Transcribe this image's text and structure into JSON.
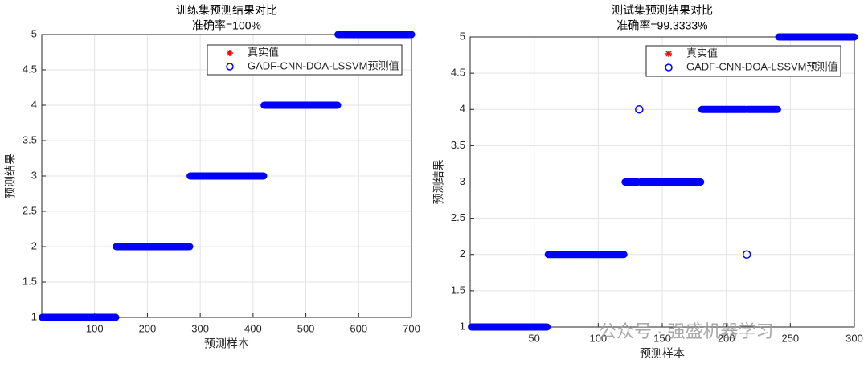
{
  "chart_data": [
    {
      "type": "scatter",
      "title": "训练集预测结果对比",
      "subtitle": "准确率=100%",
      "xlabel": "预测样本",
      "ylabel": "预测结果",
      "xlim": [
        0,
        700
      ],
      "xticks": [
        100,
        200,
        300,
        400,
        500,
        600,
        700
      ],
      "ylim": [
        1,
        5
      ],
      "yticks": [
        1,
        1.5,
        2,
        2.5,
        3,
        3.5,
        4,
        4.5,
        5
      ],
      "grid": true,
      "legend": "upper right",
      "series": [
        {
          "name": "真实值",
          "color": "#ff0000",
          "marker": "*",
          "runs": [
            {
              "x": [
                1,
                140
              ],
              "y": 1
            },
            {
              "x": [
                141,
                280
              ],
              "y": 2
            },
            {
              "x": [
                281,
                420
              ],
              "y": 3
            },
            {
              "x": [
                421,
                560
              ],
              "y": 4
            },
            {
              "x": [
                561,
                700
              ],
              "y": 5
            }
          ]
        },
        {
          "name": "GADF-CNN-DOA-LSSVM预测值",
          "color": "#0000ff",
          "marker": "o",
          "runs": [
            {
              "x": [
                1,
                140
              ],
              "y": 1
            },
            {
              "x": [
                141,
                280
              ],
              "y": 2
            },
            {
              "x": [
                281,
                420
              ],
              "y": 3
            },
            {
              "x": [
                421,
                560
              ],
              "y": 4
            },
            {
              "x": [
                561,
                700
              ],
              "y": 5
            }
          ]
        }
      ]
    },
    {
      "type": "scatter",
      "title": "测试集预测结果对比",
      "subtitle": "准确率=99.3333%",
      "xlabel": "预测样本",
      "ylabel": "预测结果",
      "xlim": [
        0,
        300
      ],
      "xticks": [
        50,
        100,
        150,
        200,
        250,
        300
      ],
      "ylim": [
        1,
        5
      ],
      "yticks": [
        1,
        1.5,
        2,
        2.5,
        3,
        3.5,
        4,
        4.5,
        5
      ],
      "grid": true,
      "legend": "upper right",
      "series": [
        {
          "name": "真实值",
          "color": "#ff0000",
          "marker": "*",
          "runs": [
            {
              "x": [
                1,
                60
              ],
              "y": 1
            },
            {
              "x": [
                61,
                120
              ],
              "y": 2
            },
            {
              "x": [
                121,
                180
              ],
              "y": 3
            },
            {
              "x": [
                181,
                240
              ],
              "y": 4
            },
            {
              "x": [
                241,
                300
              ],
              "y": 5
            }
          ]
        },
        {
          "name": "GADF-CNN-DOA-LSSVM预测值",
          "color": "#0000ff",
          "marker": "o",
          "runs": [
            {
              "x": [
                1,
                60
              ],
              "y": 1
            },
            {
              "x": [
                61,
                120
              ],
              "y": 2
            },
            {
              "x": [
                121,
                131
              ],
              "y": 3
            },
            {
              "x": [
                132,
                132
              ],
              "y": 4
            },
            {
              "x": [
                133,
                180
              ],
              "y": 3
            },
            {
              "x": [
                181,
                215
              ],
              "y": 4
            },
            {
              "x": [
                216,
                216
              ],
              "y": 2
            },
            {
              "x": [
                217,
                240
              ],
              "y": 4
            },
            {
              "x": [
                241,
                300
              ],
              "y": 5
            }
          ]
        }
      ]
    }
  ],
  "watermark": "公众号 · 强盛机器学习"
}
